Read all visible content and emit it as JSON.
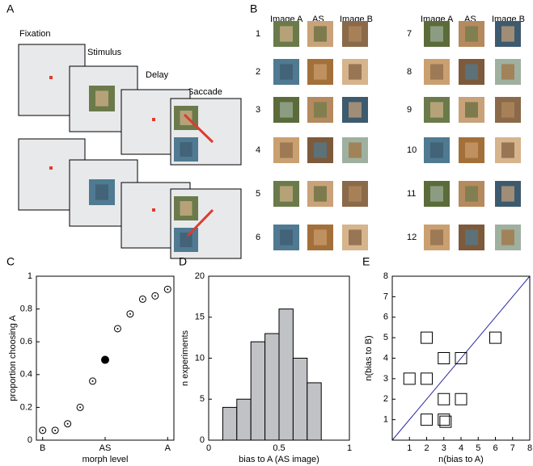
{
  "panels": {
    "A": {
      "label": "A",
      "steps": [
        "Fixation",
        "Stimulus",
        "Delay",
        "Saccade"
      ]
    },
    "B": {
      "label": "B",
      "headers": [
        "Image A",
        "AS",
        "Image B"
      ],
      "rows": [
        1,
        2,
        3,
        4,
        5,
        6,
        7,
        8,
        9,
        10,
        11,
        12
      ]
    }
  },
  "chart_data": [
    {
      "type": "dot",
      "label": "C",
      "x_label": "morph level",
      "y_label": "proportion choosing A",
      "categories": [
        "B",
        null,
        null,
        null,
        null,
        "AS",
        null,
        null,
        null,
        null,
        "A"
      ],
      "values": [
        0.06,
        0.06,
        0.1,
        0.2,
        0.36,
        0.49,
        0.68,
        0.77,
        0.86,
        0.88,
        0.92
      ],
      "filled": [
        false,
        false,
        false,
        false,
        false,
        true,
        false,
        false,
        false,
        false,
        false
      ],
      "color": "#000000",
      "ylim": [
        0,
        1
      ],
      "yticks": [
        0,
        0.2,
        0.4,
        0.6,
        0.8,
        1
      ]
    },
    {
      "type": "histogram",
      "label": "D",
      "x_label": "bias to A (AS image)",
      "y_label": "n experiments",
      "bins": [
        0.1,
        0.2,
        0.3,
        0.4,
        0.5,
        0.6,
        0.7,
        0.8
      ],
      "values": [
        4,
        5,
        12,
        13,
        16,
        10,
        7
      ],
      "color": "#c0c2c6",
      "xlim": [
        0,
        1
      ],
      "xticks": [
        0,
        0.5,
        1
      ],
      "ylim": [
        0,
        20
      ],
      "yticks": [
        0,
        5,
        10,
        15,
        20
      ]
    },
    {
      "type": "scatter",
      "label": "E",
      "x_label": "n(bias to A)",
      "y_label": "n(bias to B)",
      "x": [
        1,
        2,
        2,
        2,
        3,
        3,
        3,
        3.1,
        4,
        4,
        6
      ],
      "values": [
        3,
        3,
        5,
        1,
        4,
        2,
        1,
        0.9,
        4,
        2,
        5
      ],
      "color": "#000000",
      "diagonal": true,
      "diagonal_color": "#2a2aa0",
      "xlim": [
        0,
        8
      ],
      "xticks": [
        1,
        2,
        3,
        4,
        5,
        6,
        7,
        8
      ],
      "ylim": [
        0,
        8
      ],
      "yticks": [
        1,
        2,
        3,
        4,
        5,
        6,
        7,
        8
      ]
    }
  ]
}
